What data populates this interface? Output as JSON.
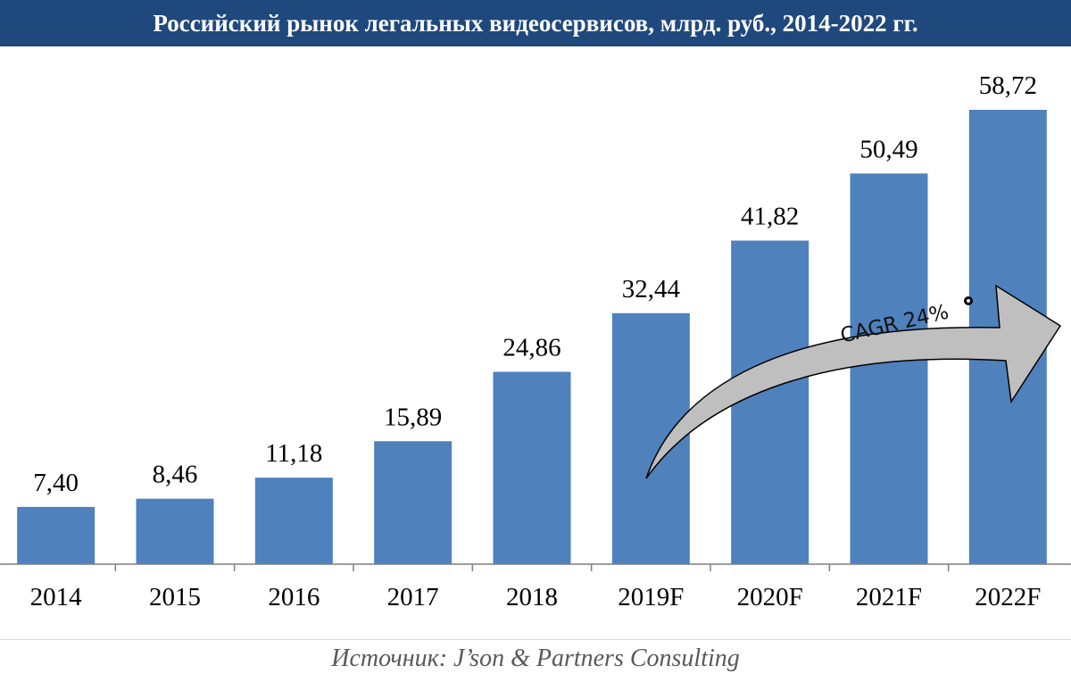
{
  "title": "Российский рынок легальных видеосервисов, млрд. руб., 2014-2022 гг.",
  "source": "Источник: J’son & Partners Consulting",
  "colors": {
    "title_bg": "#1f497d",
    "bar": "#4f81bd",
    "arrow": "#bfbfbf"
  },
  "chart_data": {
    "type": "bar",
    "title": "Российский рынок легальных видеосервисов, млрд. руб., 2014-2022 гг.",
    "categories": [
      "2014",
      "2015",
      "2016",
      "2017",
      "2018",
      "2019F",
      "2020F",
      "2021F",
      "2022F"
    ],
    "values": [
      7.4,
      8.46,
      11.18,
      15.89,
      24.86,
      32.44,
      41.82,
      50.49,
      58.72
    ],
    "value_labels": [
      "7,40",
      "8,46",
      "11,18",
      "15,89",
      "24,86",
      "32,44",
      "41,82",
      "50,49",
      "58,72"
    ],
    "ylim": [
      0,
      65
    ],
    "grid": false,
    "annotation": "CAGR 24%"
  }
}
